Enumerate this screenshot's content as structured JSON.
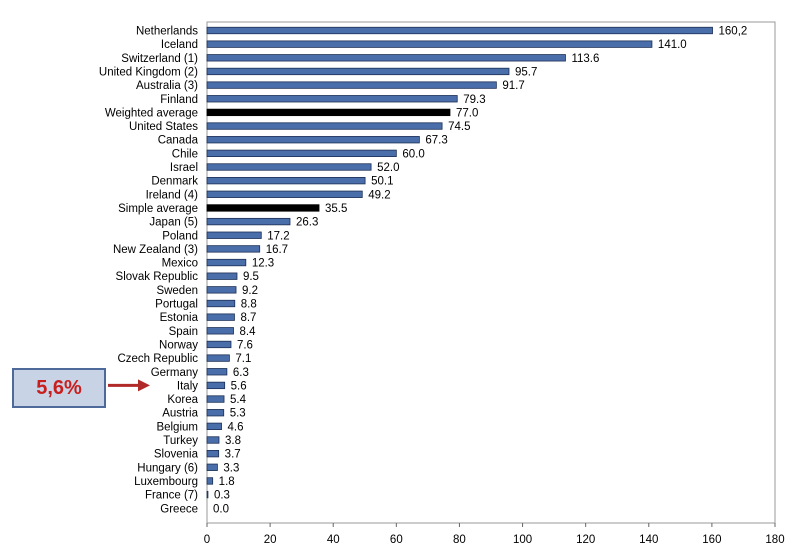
{
  "chart_data": {
    "type": "bar",
    "orientation": "horizontal",
    "categories": [
      "Netherlands",
      "Iceland",
      "Switzerland (1)",
      "United Kingdom (2)",
      "Australia (3)",
      "Finland",
      "Weighted average",
      "United States",
      "Canada",
      "Chile",
      "Israel",
      "Denmark",
      "Ireland (4)",
      "Simple average",
      "Japan (5)",
      "Poland",
      "New Zealand (3)",
      "Mexico",
      "Slovak Republic",
      "Sweden",
      "Portugal",
      "Estonia",
      "Spain",
      "Norway",
      "Czech Republic",
      "Germany",
      "Italy",
      "Korea",
      "Austria",
      "Belgium",
      "Turkey",
      "Slovenia",
      "Hungary (6)",
      "Luxembourg",
      "France (7)",
      "Greece"
    ],
    "values": [
      160.2,
      141.0,
      113.6,
      95.7,
      91.7,
      79.3,
      77.0,
      74.5,
      67.3,
      60.0,
      52.0,
      50.1,
      49.2,
      35.5,
      26.3,
      17.2,
      16.7,
      12.3,
      9.5,
      9.2,
      8.8,
      8.7,
      8.4,
      7.6,
      7.1,
      6.3,
      5.6,
      5.4,
      5.3,
      4.6,
      3.8,
      3.7,
      3.3,
      1.8,
      0.3,
      0.0
    ],
    "value_labels": [
      "160,2",
      "141.0",
      "113.6",
      "95.7",
      "91.7",
      "79.3",
      "77.0",
      "74.5",
      "67.3",
      "60.0",
      "52.0",
      "50.1",
      "49.2",
      "35.5",
      "26.3",
      "17.2",
      "16.7",
      "12.3",
      "9.5",
      "9.2",
      "8.8",
      "8.7",
      "8.4",
      "7.6",
      "7.1",
      "6.3",
      "5.6",
      "5.4",
      "5.3",
      "4.6",
      "3.8",
      "3.7",
      "3.3",
      "1.8",
      "0.3",
      "0.0"
    ],
    "highlight_categories": [
      "Weighted average",
      "Simple average"
    ],
    "xlim": [
      0,
      180
    ],
    "xticks": [
      0,
      20,
      40,
      60,
      80,
      100,
      120,
      140,
      160,
      180
    ],
    "grid": false,
    "colors": {
      "bar": "#4a6ea9",
      "bar_edge": "#1c2f55",
      "highlight": "#000000",
      "text": "#000000"
    }
  },
  "callout": {
    "text": "5,6%",
    "points_to": "Italy",
    "colors": {
      "fill": "#c9d3e6",
      "border": "#4e6a9b",
      "text": "#c81e1e",
      "arrow": "#b02a2a"
    }
  }
}
